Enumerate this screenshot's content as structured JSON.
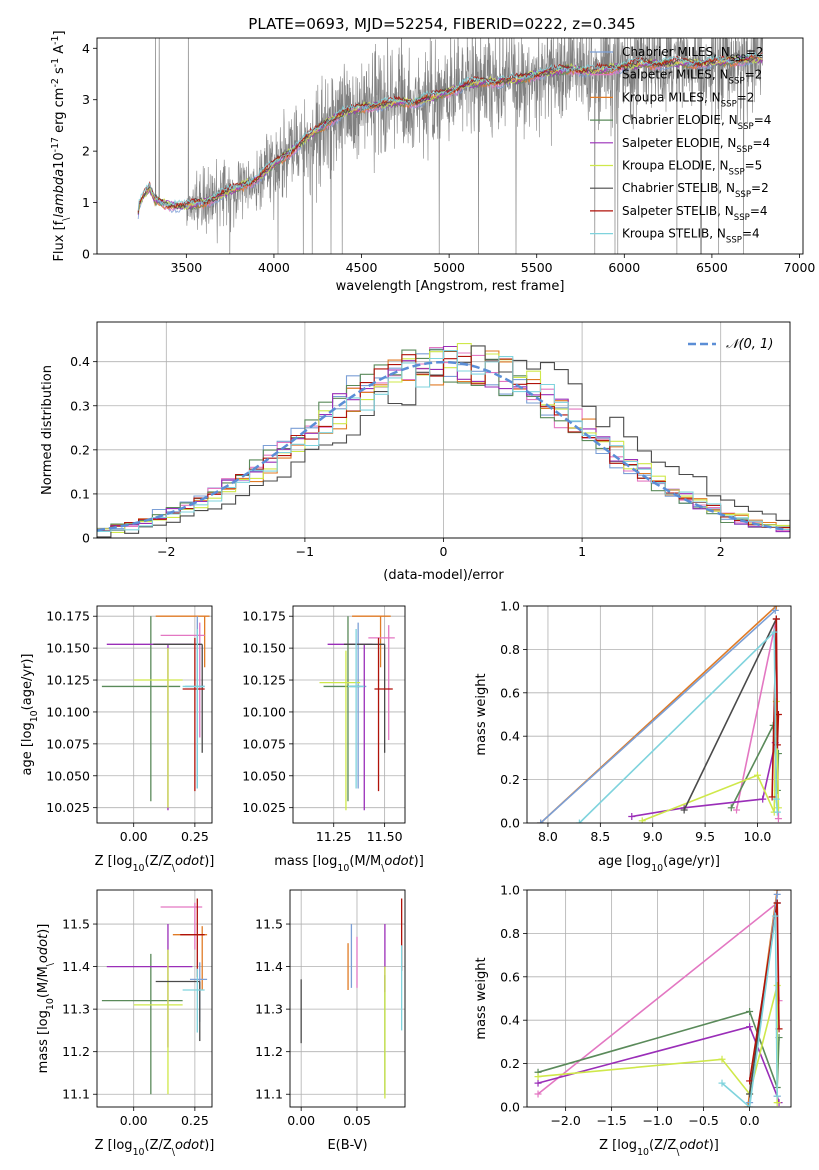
{
  "figure": {
    "title": "PLATE=0693, MJD=52254, FIBERID=0222, z=0.345"
  },
  "colors": {
    "chabrier_miles": "#7b9fd6",
    "salpeter_miles": "#e377c2",
    "kroupa_miles": "#e07b26",
    "chabrier_elodie": "#5a8a5a",
    "salpeter_elodie": "#9a2eb8",
    "kroupa_elodie": "#cfe84a",
    "chabrier_stelib": "#4a4a4a",
    "salpeter_stelib": "#b0120a",
    "kroupa_stelib": "#7fd3dd",
    "data": "#808080",
    "normal": "#5b8ed6"
  },
  "chart_data": [
    {
      "id": "spectrum",
      "type": "line",
      "xlabel": "wavelength [Angstrom, rest frame]",
      "ylabel": "Flux [f$_\\lambda$10$^{-17}$ erg cm$^{-2}$ s$^{-1}$ A$^{-1}$]",
      "xlim": [
        2990,
        7020
      ],
      "ylim": [
        0,
        4.2
      ],
      "xticks": [
        3500,
        4000,
        4500,
        5000,
        5500,
        6000,
        6500,
        7000
      ],
      "yticks": [
        0,
        1,
        2,
        3,
        4
      ],
      "grid": false,
      "legend": "top-right",
      "continuum": {
        "x": [
          3200,
          3230,
          3260,
          3290,
          3320,
          3400,
          3480,
          3520,
          3600,
          3700,
          3800,
          3900,
          4000,
          4100,
          4200,
          4300,
          4400,
          4500,
          4600,
          4700,
          4800,
          4900,
          5000,
          5100,
          5200,
          5300,
          5400,
          5500,
          5600,
          5700,
          5800,
          5900,
          6000,
          6100,
          6200,
          6300,
          6400,
          6500,
          6600,
          6700,
          6800
        ],
        "y": [
          0,
          0.95,
          1.15,
          1.28,
          1.05,
          0.95,
          0.92,
          0.95,
          1.0,
          1.15,
          1.3,
          1.45,
          1.75,
          2.0,
          2.3,
          2.55,
          2.75,
          2.85,
          2.9,
          2.95,
          2.95,
          3.05,
          3.15,
          3.3,
          3.35,
          3.35,
          3.4,
          3.5,
          3.55,
          3.6,
          3.55,
          3.6,
          3.65,
          3.7,
          3.7,
          3.72,
          3.7,
          3.72,
          3.75,
          3.78,
          3.8
        ]
      },
      "series": [
        {
          "name": "Chabrier MILES, N$_{SSP}$=2"
        },
        {
          "name": "Salpeter MILES, N$_{SSP}$=2"
        },
        {
          "name": "Kroupa MILES, N$_{SSP}$=2"
        },
        {
          "name": "Chabrier ELODIE, N$_{SSP}$=4"
        },
        {
          "name": "Salpeter ELODIE, N$_{SSP}$=4"
        },
        {
          "name": "Kroupa ELODIE, N$_{SSP}$=5"
        },
        {
          "name": "Chabrier STELIB, N$_{SSP}$=2"
        },
        {
          "name": "Salpeter STELIB, N$_{SSP}$=4"
        },
        {
          "name": "Kroupa STELIB, N$_{SSP}$=4"
        }
      ]
    },
    {
      "id": "residuals",
      "type": "line",
      "xlabel": "(data-model)/error",
      "ylabel": "Normed distribution",
      "xlim": [
        -2.5,
        2.5
      ],
      "ylim": [
        0,
        0.49
      ],
      "xticks": [
        -2,
        -1,
        0,
        1,
        2
      ],
      "yticks": [
        0.0,
        0.1,
        0.2,
        0.3,
        0.4
      ],
      "grid": true,
      "legend": "top-right",
      "legend_label": "$\\mathcal{N}(0, 1)$"
    },
    {
      "id": "age_vs_Z",
      "type": "scatter",
      "xlabel": "Z [log$_{10}$(Z/Z$_\\odot$)]",
      "ylabel": "age  [log$_{10}$(age/yr)]",
      "xlim": [
        -0.15,
        0.32
      ],
      "ylim": [
        10.013,
        10.183
      ],
      "xticks": [
        0.0,
        0.25
      ],
      "xticklabels": [
        "0.00",
        "0.25"
      ],
      "yticks": [
        10.025,
        10.05,
        10.075,
        10.1,
        10.125,
        10.15,
        10.175
      ],
      "yticklabels": [
        "10.025",
        "10.050",
        "10.075",
        "10.100",
        "10.125",
        "10.150",
        "10.175"
      ],
      "grid": true,
      "points": [
        {
          "x": 0.29,
          "y": 10.175,
          "xerr": [
            0.2,
            0.02
          ],
          "yerr": [
            0.04,
            0.0
          ],
          "s": "kroupa_miles"
        },
        {
          "x": 0.27,
          "y": 10.16,
          "xerr": [
            0.16,
            0.02
          ],
          "yerr": [
            0.08,
            0.01
          ],
          "s": "salpeter_miles"
        },
        {
          "x": 0.26,
          "y": 10.12,
          "xerr": [
            0.05,
            0.03
          ],
          "yerr": [
            0.08,
            0.055
          ],
          "s": "chabrier_miles"
        },
        {
          "x": 0.07,
          "y": 10.12,
          "xerr": [
            0.2,
            0.12
          ],
          "yerr": [
            0.09,
            0.055
          ],
          "s": "chabrier_elodie"
        },
        {
          "x": 0.14,
          "y": 10.153,
          "xerr": [
            0.25,
            0.1
          ],
          "yerr": [
            0.13,
            0.0
          ],
          "s": "salpeter_elodie"
        },
        {
          "x": 0.14,
          "y": 10.125,
          "xerr": [
            0.14,
            0.06
          ],
          "yerr": [
            0.1,
            0.025
          ],
          "s": "kroupa_elodie"
        },
        {
          "x": 0.28,
          "y": 10.153,
          "xerr": [
            0.2,
            0.0
          ],
          "yerr": [
            0.085,
            0.0
          ],
          "s": "chabrier_stelib"
        },
        {
          "x": 0.25,
          "y": 10.118,
          "xerr": [
            0.05,
            0.04
          ],
          "yerr": [
            0.08,
            0.04
          ],
          "s": "salpeter_stelib"
        },
        {
          "x": 0.26,
          "y": 10.12,
          "xerr": [
            0.06,
            0.03
          ],
          "yerr": [
            0.08,
            0.045
          ],
          "s": "kroupa_stelib"
        }
      ]
    },
    {
      "id": "age_vs_mass",
      "type": "scatter",
      "xlabel": "mass [log$_{10}$(M/M$_\\odot$)]",
      "xlim": [
        11.05,
        11.6
      ],
      "ylim": [
        10.013,
        10.183
      ],
      "xticks": [
        11.25,
        11.5
      ],
      "xticklabels": [
        "11.25",
        "11.50"
      ],
      "yticks": [
        10.025,
        10.05,
        10.075,
        10.1,
        10.125,
        10.15,
        10.175
      ],
      "yticklabels": [
        "10.025",
        "10.050",
        "10.075",
        "10.100",
        "10.125",
        "10.150",
        "10.175"
      ],
      "grid": true,
      "points": [
        {
          "x": 11.48,
          "y": 10.175,
          "xerr": [
            0.14,
            0.05
          ],
          "yerr": [
            0.04,
            0.0
          ],
          "s": "kroupa_miles"
        },
        {
          "x": 11.52,
          "y": 10.158,
          "xerr": [
            0.1,
            0.03
          ],
          "yerr": [
            0.08,
            0.01
          ],
          "s": "salpeter_miles"
        },
        {
          "x": 11.37,
          "y": 10.12,
          "xerr": [
            0.04,
            0.04
          ],
          "yerr": [
            0.08,
            0.05
          ],
          "s": "chabrier_miles"
        },
        {
          "x": 11.32,
          "y": 10.12,
          "xerr": [
            0.12,
            0.06
          ],
          "yerr": [
            0.09,
            0.055
          ],
          "s": "chabrier_elodie"
        },
        {
          "x": 11.4,
          "y": 10.153,
          "xerr": [
            0.18,
            0.04
          ],
          "yerr": [
            0.13,
            0.0
          ],
          "s": "salpeter_elodie"
        },
        {
          "x": 11.31,
          "y": 10.123,
          "xerr": [
            0.13,
            0.07
          ],
          "yerr": [
            0.1,
            0.025
          ],
          "s": "kroupa_elodie"
        },
        {
          "x": 11.5,
          "y": 10.153,
          "xerr": [
            0.2,
            0.0
          ],
          "yerr": [
            0.085,
            0.0
          ],
          "s": "chabrier_stelib"
        },
        {
          "x": 11.47,
          "y": 10.118,
          "xerr": [
            0.02,
            0.07
          ],
          "yerr": [
            0.08,
            0.04
          ],
          "s": "salpeter_stelib"
        },
        {
          "x": 11.36,
          "y": 10.12,
          "xerr": [
            0.04,
            0.04
          ],
          "yerr": [
            0.08,
            0.045
          ],
          "s": "kroupa_stelib"
        }
      ]
    },
    {
      "id": "weight_vs_age",
      "type": "line",
      "xlabel": "age  [log$_{10}$(age/yr)]",
      "ylabel": "mass weight",
      "xlim": [
        7.8,
        10.32
      ],
      "ylim": [
        0,
        1
      ],
      "xticks": [
        8.0,
        8.5,
        9.0,
        9.5,
        10.0
      ],
      "xticklabels": [
        "8.0",
        "8.5",
        "9.0",
        "9.5",
        "10.0"
      ],
      "yticks": [
        0.0,
        0.2,
        0.4,
        0.6,
        0.8,
        1.0
      ],
      "yticklabels": [
        "0.0",
        "0.2",
        "0.4",
        "0.6",
        "0.8",
        "1.0"
      ],
      "grid": true,
      "series": [
        {
          "s": "kroupa_miles",
          "x": [
            7.93,
            10.18
          ],
          "y": [
            0.0,
            1.0
          ]
        },
        {
          "s": "chabrier_miles",
          "x": [
            7.93,
            10.17
          ],
          "y": [
            0.0,
            0.98
          ]
        },
        {
          "s": "salpeter_miles",
          "x": [
            9.8,
            10.18,
            10.2
          ],
          "y": [
            0.06,
            0.94,
            0.02
          ]
        },
        {
          "s": "chabrier_elodie",
          "x": [
            9.75,
            10.15,
            10.19,
            10.2
          ],
          "y": [
            0.07,
            0.45,
            0.15,
            0.32
          ]
        },
        {
          "s": "salpeter_elodie",
          "x": [
            8.8,
            9.3,
            10.05,
            10.17
          ],
          "y": [
            0.03,
            0.07,
            0.11,
            0.37
          ]
        },
        {
          "s": "kroupa_elodie",
          "x": [
            8.9,
            10.0,
            10.16,
            10.18,
            10.2
          ],
          "y": [
            0.01,
            0.22,
            0.05,
            0.56,
            0.07
          ]
        },
        {
          "s": "chabrier_stelib",
          "x": [
            9.3,
            10.18
          ],
          "y": [
            0.06,
            0.94
          ]
        },
        {
          "s": "salpeter_stelib",
          "x": [
            10.14,
            10.18,
            10.19,
            10.2
          ],
          "y": [
            0.12,
            0.94,
            0.36,
            0.5
          ]
        },
        {
          "s": "kroupa_stelib",
          "x": [
            8.3,
            10.16,
            10.18,
            10.19
          ],
          "y": [
            0.0,
            0.88,
            0.11,
            0.05
          ]
        }
      ]
    },
    {
      "id": "mass_vs_Z",
      "type": "scatter",
      "xlabel": "Z [log$_{10}$(Z/Z$_\\odot$)]",
      "ylabel": "mass [log$_{10}$(M/M$_\\odot$)]",
      "xlim": [
        -0.15,
        0.32
      ],
      "ylim": [
        11.07,
        11.58
      ],
      "xticks": [
        0.0,
        0.25
      ],
      "xticklabels": [
        "0.00",
        "0.25"
      ],
      "yticks": [
        11.1,
        11.2,
        11.3,
        11.4,
        11.5
      ],
      "yticklabels": [
        "11.1",
        "11.2",
        "11.3",
        "11.4",
        "11.5"
      ],
      "grid": true,
      "points": [
        {
          "x": 0.28,
          "y": 11.475,
          "xerr": [
            0.12,
            0.02
          ],
          "yerr": [
            0.13,
            0.02
          ],
          "s": "kroupa_miles"
        },
        {
          "x": 0.25,
          "y": 11.54,
          "xerr": [
            0.14,
            0.03
          ],
          "yerr": [
            0.1,
            0.01
          ],
          "s": "salpeter_miles"
        },
        {
          "x": 0.27,
          "y": 11.37,
          "xerr": [
            0.04,
            0.03
          ],
          "yerr": [
            0.1,
            0.04
          ],
          "s": "chabrier_miles"
        },
        {
          "x": 0.07,
          "y": 11.32,
          "xerr": [
            0.2,
            0.13
          ],
          "yerr": [
            0.22,
            0.11
          ],
          "s": "chabrier_elodie"
        },
        {
          "x": 0.14,
          "y": 11.4,
          "xerr": [
            0.25,
            0.1
          ],
          "yerr": [
            0.19,
            0.1
          ],
          "s": "salpeter_elodie"
        },
        {
          "x": 0.14,
          "y": 11.31,
          "xerr": [
            0.14,
            0.06
          ],
          "yerr": [
            0.21,
            0.13
          ],
          "s": "kroupa_elodie"
        },
        {
          "x": 0.27,
          "y": 11.365,
          "xerr": [
            0.18,
            0.0
          ],
          "yerr": [
            0.14,
            0.0
          ],
          "s": "chabrier_stelib"
        },
        {
          "x": 0.26,
          "y": 11.475,
          "xerr": [
            0.07,
            0.03
          ],
          "yerr": [
            0.1,
            0.085
          ],
          "s": "salpeter_stelib"
        },
        {
          "x": 0.26,
          "y": 11.345,
          "xerr": [
            0.06,
            0.03
          ],
          "yerr": [
            0.1,
            0.05
          ],
          "s": "kroupa_stelib"
        }
      ]
    },
    {
      "id": "mass_vs_ebv",
      "type": "scatter",
      "xlabel": "E(B-V)",
      "xlim": [
        -0.01,
        0.093
      ],
      "ylim": [
        11.07,
        11.58
      ],
      "xticks": [
        0.0,
        0.05
      ],
      "xticklabels": [
        "0.00",
        "0.05"
      ],
      "yticks": [
        11.1,
        11.2,
        11.3,
        11.4,
        11.5
      ],
      "yticklabels": [
        "11.1",
        "11.2",
        "11.3",
        "11.4",
        "11.5"
      ],
      "grid": true,
      "points": [
        {
          "x": 0.042,
          "y": 11.395,
          "yerr": [
            0.05,
            0.06
          ],
          "s": "kroupa_miles"
        },
        {
          "x": 0.05,
          "y": 11.42,
          "yerr": [
            0.07,
            0.05
          ],
          "s": "salpeter_miles"
        },
        {
          "x": 0.045,
          "y": 11.42,
          "yerr": [
            0.07,
            0.08
          ],
          "s": "chabrier_miles"
        },
        {
          "x": 0.075,
          "y": 11.3,
          "yerr": [
            0.2,
            0.08
          ],
          "s": "chabrier_elodie"
        },
        {
          "x": 0.075,
          "y": 11.42,
          "yerr": [
            0.08,
            0.08
          ],
          "s": "salpeter_elodie"
        },
        {
          "x": 0.075,
          "y": 11.27,
          "yerr": [
            0.18,
            0.13
          ],
          "s": "kroupa_elodie"
        },
        {
          "x": 0.0,
          "y": 11.3,
          "yerr": [
            0.08,
            0.07
          ],
          "s": "chabrier_stelib"
        },
        {
          "x": 0.09,
          "y": 11.45,
          "yerr": [
            0.06,
            0.11
          ],
          "s": "salpeter_stelib"
        },
        {
          "x": 0.09,
          "y": 11.35,
          "yerr": [
            0.1,
            0.1
          ],
          "s": "kroupa_stelib"
        }
      ]
    },
    {
      "id": "weight_vs_Z",
      "type": "line",
      "xlabel": "Z [log$_{10}$(Z/Z$_\\odot$)]",
      "ylabel": "mass weight",
      "xlim": [
        -2.42,
        0.45
      ],
      "ylim": [
        0,
        1
      ],
      "xticks": [
        -2.0,
        -1.5,
        -1.0,
        -0.5,
        0.0
      ],
      "xticklabels": [
        "−2.0",
        "−1.5",
        "−1.0",
        "−0.5",
        "0.0"
      ],
      "yticks": [
        0.0,
        0.2,
        0.4,
        0.6,
        0.8,
        1.0
      ],
      "yticklabels": [
        "0.0",
        "0.2",
        "0.4",
        "0.6",
        "0.8",
        "1.0"
      ],
      "grid": true,
      "series": [
        {
          "s": "salpeter_miles",
          "x": [
            -2.3,
            0.3,
            0.32
          ],
          "y": [
            0.06,
            0.94,
            0.49
          ]
        },
        {
          "s": "kroupa_miles",
          "x": [
            -0.02,
            0.3
          ],
          "y": [
            0.0,
            1.0
          ]
        },
        {
          "s": "chabrier_miles",
          "x": [
            0.0,
            0.3
          ],
          "y": [
            0.02,
            0.98
          ]
        },
        {
          "s": "chabrier_elodie",
          "x": [
            -2.3,
            0.0,
            0.3,
            0.32
          ],
          "y": [
            0.16,
            0.44,
            0.09,
            0.32
          ]
        },
        {
          "s": "salpeter_elodie",
          "x": [
            -2.3,
            0.0,
            0.3,
            0.32
          ],
          "y": [
            0.11,
            0.37,
            0.05,
            0.02
          ]
        },
        {
          "s": "kroupa_elodie",
          "x": [
            -2.3,
            -0.3,
            0.0,
            0.3,
            0.3
          ],
          "y": [
            0.14,
            0.22,
            0.06,
            0.56,
            0.02
          ]
        },
        {
          "s": "chabrier_stelib",
          "x": [
            0.0,
            0.3
          ],
          "y": [
            0.06,
            0.94
          ]
        },
        {
          "s": "salpeter_stelib",
          "x": [
            0.0,
            0.3,
            0.32
          ],
          "y": [
            0.12,
            0.94,
            0.36
          ]
        },
        {
          "s": "kroupa_stelib",
          "x": [
            -0.3,
            0.0,
            0.28,
            0.3
          ],
          "y": [
            0.11,
            0.0,
            0.88,
            0.05
          ]
        }
      ]
    }
  ]
}
